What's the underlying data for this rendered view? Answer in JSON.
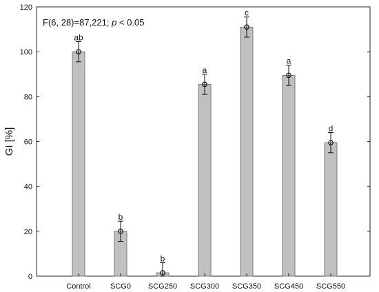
{
  "chart_data": {
    "type": "bar",
    "title": "",
    "xlabel": "",
    "ylabel": "GI [%]",
    "ylim": [
      0,
      120
    ],
    "yticks": [
      0,
      20,
      40,
      60,
      80,
      100,
      120
    ],
    "grid": false,
    "annotation": {
      "prefix": "F(6, 28)=87,221; ",
      "p_symbol": "p",
      "suffix": " < 0.05"
    },
    "categories": [
      "Control",
      "SCG0",
      "SCG250",
      "SCG300",
      "SCG350",
      "SCG450",
      "SCG550"
    ],
    "values": [
      100,
      20,
      1.5,
      85.5,
      111,
      89.5,
      59.5
    ],
    "error": [
      4.5,
      4.5,
      4.5,
      4.5,
      4.5,
      4.5,
      4.5
    ],
    "letters": [
      "ab",
      "b",
      "b",
      "a",
      "c",
      "a",
      "d"
    ],
    "colors": {
      "bar_fill": "#c0c0c0",
      "bar_stroke": "#7a7a7a",
      "axis": "#222222",
      "marker": "#111111"
    }
  }
}
